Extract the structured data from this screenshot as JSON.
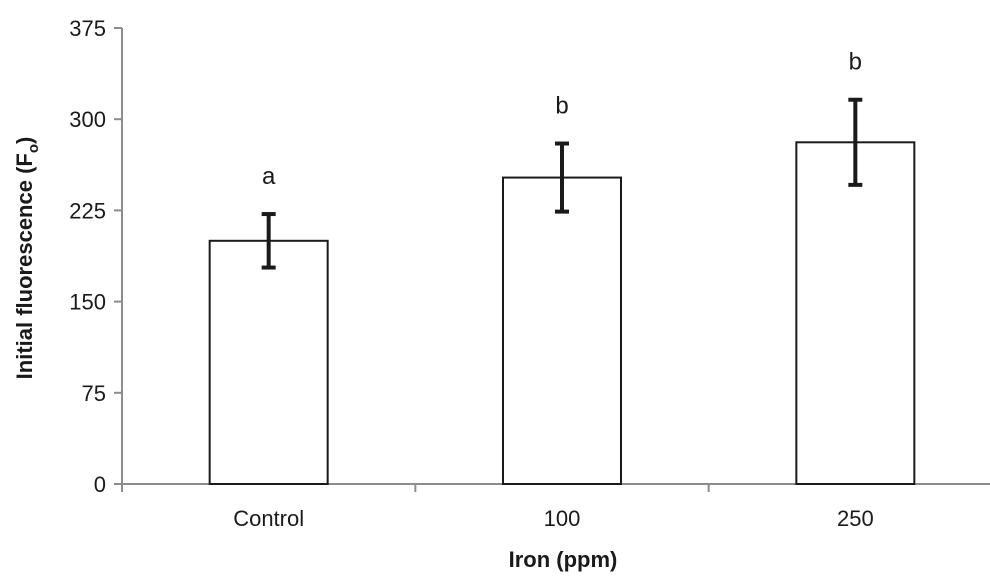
{
  "chart_data": {
    "type": "bar",
    "categories": [
      "Control",
      "100",
      "250"
    ],
    "values": [
      200,
      252,
      281
    ],
    "error": [
      22,
      28,
      35
    ],
    "significance": [
      "a",
      "b",
      "b"
    ],
    "xlabel": "Iron (ppm)",
    "ylabel": "Initial fluorescence (F",
    "ylabel_sub": "o",
    "ylabel_end": ")",
    "ylim": [
      0,
      375
    ],
    "yticks": [
      "0",
      "75",
      "150",
      "225",
      "300",
      "375"
    ],
    "grid": false,
    "colors": {
      "bar_fill": "#ffffff",
      "bar_edge": "#1a1a1a",
      "axis": "#8c8c8c"
    }
  }
}
